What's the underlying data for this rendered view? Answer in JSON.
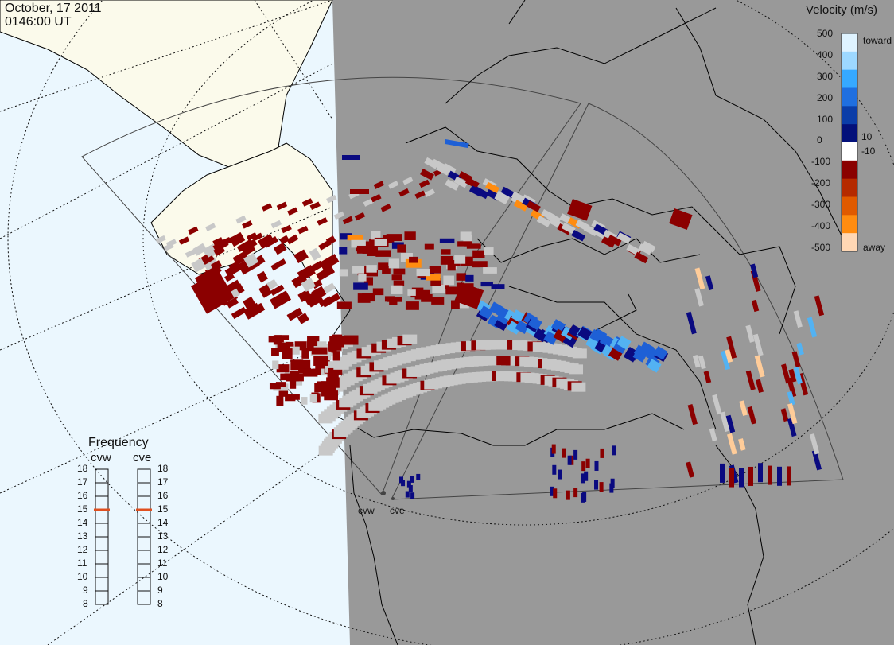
{
  "header": {
    "date": "October, 17 2011",
    "time": "0146:00 UT"
  },
  "colors": {
    "ocean": "#ebf7fe",
    "land_light": "#fbfaeb",
    "night": "#999999",
    "ground_scatter": "#c8c8c8",
    "coastline": "#000000"
  },
  "velocity_scale": {
    "title": "Velocity (m/s)",
    "ticks": [
      "500",
      "400",
      "300",
      "200",
      "100",
      "10",
      "0",
      "-10",
      "-100",
      "-200",
      "-300",
      "-400",
      "-500"
    ],
    "toward_label": "toward",
    "away_label": "away",
    "color_stops": [
      "#dff3ff",
      "#9dd8ff",
      "#36a9ff",
      "#1f6fe0",
      "#0b3da8",
      "#03107a",
      "#ffffff",
      "#8a0000",
      "#b52a00",
      "#e05a00",
      "#ff8c10",
      "#ffd7b4"
    ]
  },
  "frequency": {
    "title": "Frequency",
    "radars": [
      {
        "name": "cvw",
        "value": 15
      },
      {
        "name": "cve",
        "value": 15
      }
    ],
    "ticks": [
      "18",
      "17",
      "16",
      "15",
      "14",
      "13",
      "12",
      "11",
      "10",
      "9",
      "8"
    ]
  },
  "radar_sites": [
    {
      "name": "cvw"
    },
    {
      "name": "cve"
    }
  ],
  "scatter": {
    "colors": {
      "dark_red": "#8b0000",
      "red": "#a01010",
      "gray": "#c8c8c8",
      "navy": "#0a0a80",
      "blue": "#1e60d6",
      "lightblue": "#53b2f2",
      "orange": "#ff8c10",
      "peach": "#ffcc99"
    }
  }
}
